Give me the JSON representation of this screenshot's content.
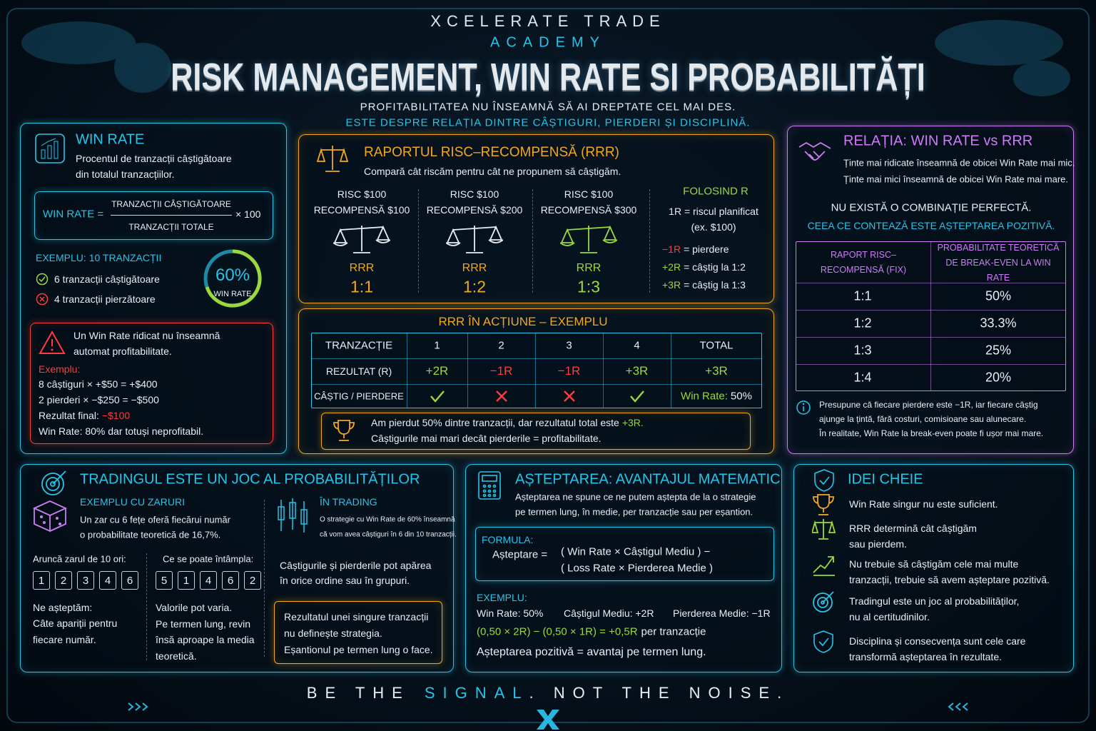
{
  "header": {
    "brand": "XCELERATE TRADE",
    "academy": "ACADEMY",
    "title": "RISK MANAGEMENT, WIN RATE SI PROBABILITĂȚI",
    "subtitle": "PROFITABILITATEA NU ÎNSEAMNĂ SĂ AI DREPTATE CEL MAI DES.",
    "tagline": "ESTE DESPRE RELAȚIA DINTRE CÂȘTIGURI, PIERDERI ȘI DISCIPLINĂ."
  },
  "win_rate": {
    "title": "WIN RATE",
    "description": [
      "Procentul de tranzacții câștigătoare",
      "din totalul tranzacțiilor."
    ],
    "formula": {
      "label": "WIN RATE =",
      "numerator": "TRANZACȚII CÂȘTIGĂTOARE",
      "denominator": "TRANZACȚII TOTALE",
      "multiplier": "× 100"
    },
    "example_title": "EXEMPLU: 10 TRANZACȚII",
    "wins": "6 tranzacții câștigătoare",
    "losses": "4 tranzacții pierzătoare",
    "gauge_value": "60%",
    "gauge_label": "WIN RATE",
    "warning": {
      "text": [
        "Un Win Rate ridicat nu înseamnă",
        "automat profitabilitate."
      ],
      "example_label": "Exemplu:",
      "lines": [
        "8 câștiguri × +$50 = +$400",
        "2 pierderi × −$250 = −$500"
      ],
      "result_label": "Rezultat final:",
      "result_value": "−$100",
      "conclusion": "Win Rate: 80% dar totuși neprofitabil."
    }
  },
  "rrr": {
    "title": "RAPORTUL RISC–RECOMPENSĂ (RRR)",
    "description": "Compară cât riscăm pentru cât ne propunem să câștigăm.",
    "scenarios": [
      {
        "risk": "RISC $100",
        "reward": "RECOMPENSĂ $100",
        "label": "RRR",
        "ratio": "1:1"
      },
      {
        "risk": "RISC $100",
        "reward": "RECOMPENSĂ $200",
        "label": "RRR",
        "ratio": "1:2"
      },
      {
        "risk": "RISC $100",
        "reward": "RECOMPENSĂ $300",
        "label": "RRR",
        "ratio": "1:3"
      }
    ],
    "using_r": {
      "title": "FOLOSIND R",
      "definition": "1R = riscul planificat",
      "example": "(ex. $100)",
      "items": [
        {
          "key": "−1R",
          "text": "= pierdere"
        },
        {
          "key": "+2R",
          "text": "= câștig la 1:2"
        },
        {
          "key": "+3R",
          "text": "= câștig la 1:3"
        }
      ]
    }
  },
  "rrr_example": {
    "title": "RRR ÎN ACȚIUNE – EXEMPLU",
    "header": [
      "TRANZACȚIE",
      "1",
      "2",
      "3",
      "4",
      "TOTAL"
    ],
    "result_row": [
      "REZULTAT (R)",
      "+2R",
      "−1R",
      "−1R",
      "+3R",
      "+3R"
    ],
    "outcome_label": "CÂȘTIG / PIERDERE",
    "win_rate_label": "Win Rate:",
    "win_rate_value": "50%",
    "note": {
      "line1": "Am pierdut 50% dintre tranzacții, dar rezultatul total este",
      "line1_value": "+3R.",
      "line2": "Câștigurile mai mari decât pierderile = profitabilitate."
    }
  },
  "relation": {
    "title": "RELAȚIA: WIN RATE vs RRR",
    "lines": [
      "Ținte mai ridicate înseamnă de obicei Win Rate mai mic.",
      "Ținte mai mici înseamnă de obicei Win Rate mai mare."
    ],
    "statement": "NU EXISTĂ O COMBINAȚIE PERFECTĂ.",
    "emphasis": "CEEA CE CONTEAZĂ ESTE AȘTEPTAREA POZITIVĂ.",
    "table": {
      "header": [
        "RAPORT RISC–RECOMPENSĂ (FIX)",
        "PROBABILITATE TEORETICĂ DE BREAK-EVEN LA WIN RATE"
      ],
      "rows": [
        [
          "1:1",
          "50%"
        ],
        [
          "1:2",
          "33.3%"
        ],
        [
          "1:3",
          "25%"
        ],
        [
          "1:4",
          "20%"
        ]
      ]
    },
    "footnote": [
      "Presupune că fiecare pierdere este −1R, iar fiecare câștig",
      "ajunge la țintă, fără costuri, comisioane sau alunecare.",
      "În realitate, Win Rate la break-even poate fi ușor mai mare."
    ]
  },
  "probability": {
    "title": "TRADINGUL ESTE UN JOC AL PROBABILITĂȚILOR",
    "dice": {
      "title": "EXEMPLU CU ZARURI",
      "description": [
        "Un zar cu 6 fețe oferă fiecărui număr",
        "o probabilitate teoretică de 16,7%."
      ],
      "expected": {
        "label": "Aruncă zarul de 10 ori:",
        "rolls": [
          "1",
          "2",
          "3",
          "4",
          "6"
        ],
        "title": "Ne așteptăm:",
        "text": [
          "Câte apariții pentru",
          "fiecare număr."
        ]
      },
      "actual": {
        "label": "Ce se poate întâmpla:",
        "rolls": [
          "5",
          "1",
          "4",
          "6",
          "2"
        ],
        "text": [
          "Valorile pot varia.",
          "Pe termen lung, revin",
          "însă aproape la media",
          "teoretică."
        ]
      }
    },
    "trading": {
      "title": "ÎN TRADING",
      "description": [
        "O strategie cu Win Rate de 60% înseamnă",
        "că vom avea câștiguri în 6 din 10 tranzacții."
      ],
      "text": [
        "Câștigurile și pierderile pot apărea",
        "în orice ordine sau în grupuri."
      ],
      "note": [
        "Rezultatul unei singure tranzacții",
        "nu definește strategia.",
        "Eșantionul pe termen lung o face."
      ]
    }
  },
  "expectation": {
    "title": "AȘTEPTAREA: AVANTAJUL MATEMATIC",
    "description": [
      "Așteptarea ne spune ce ne putem aștepta de la o strategie",
      "pe termen lung, în medie, per tranzacție sau per eșantion."
    ],
    "formula": {
      "label": "FORMULA:",
      "lhs": "Așteptare =",
      "term1": "( Win Rate × Câștigul Mediu ) −",
      "term2": "( Loss Rate × Pierderea Medie )"
    },
    "example": {
      "label": "EXEMPLU:",
      "win_rate": "Win Rate: 50%",
      "avg_win": "Câștigul Mediu: +2R",
      "avg_loss": "Pierderea Medie: −1R",
      "calculation": "(0,50 × 2R) − (0,50 × 1R) = +0,5R",
      "per_trade": "per tranzacție",
      "conclusion": "Așteptarea pozitivă = avantaj pe termen lung."
    }
  },
  "key_ideas": {
    "title": "IDEI CHEIE",
    "items": [
      [
        "Win Rate singur nu este suficient."
      ],
      [
        "RRR determină cât câștigăm",
        "sau pierdem."
      ],
      [
        "Nu trebuie să câștigăm cele mai multe",
        "tranzacții, trebuie să avem așteptare pozitivă."
      ],
      [
        "Tradingul este un joc al probabilităților,",
        "nu al certitudinilor."
      ],
      [
        "Disciplina și consecvența sunt cele care",
        "transformă așteptarea în rezultate."
      ]
    ]
  },
  "footer": {
    "parts": [
      "BE THE",
      "SIGNAL",
      ". NOT THE NOISE."
    ]
  }
}
